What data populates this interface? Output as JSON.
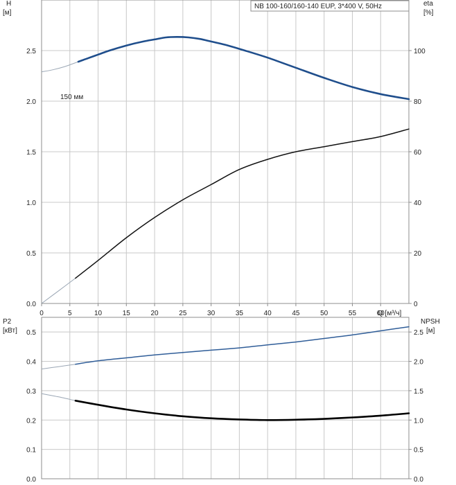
{
  "title_box": "NB 100-160/160-140 EUP, 3*400 V, 50Hz",
  "curve_label": "150 мм",
  "colors": {
    "grid": "#c8c8c8",
    "frame": "#8c8c8c",
    "head_curve": "#1f4e8c",
    "eta_curve": "#111111",
    "npsh_curve": "#2f5d98",
    "p2_curve": "#000000",
    "extension": "#9aa6b4"
  },
  "chart_data": [
    {
      "type": "line",
      "panel": "top",
      "x_axis": {
        "label": "Q [м³/ч]",
        "ticks": [
          0,
          5,
          10,
          15,
          20,
          25,
          30,
          35,
          40,
          45,
          50,
          55,
          60
        ],
        "range": [
          0,
          65
        ]
      },
      "left_axis": {
        "label": "H",
        "unit": "[м]",
        "ticks": [
          0.0,
          0.5,
          1.0,
          1.5,
          2.0,
          2.5
        ],
        "range": [
          0,
          3.0
        ]
      },
      "right_axis": {
        "label": "eta",
        "unit": "[%]",
        "ticks": [
          0,
          20,
          40,
          60,
          80,
          100
        ],
        "range": [
          0,
          120
        ]
      },
      "series": [
        {
          "name": "H",
          "axis": "left",
          "extension": {
            "x": [
              0,
              2,
              4,
              6.5
            ],
            "y": [
              2.29,
              2.31,
              2.34,
              2.39
            ]
          },
          "x": [
            6.5,
            8,
            10,
            12,
            15,
            18,
            20,
            22,
            24,
            26,
            28,
            30,
            33,
            36,
            40,
            45,
            50,
            55,
            60,
            65
          ],
          "y": [
            2.39,
            2.42,
            2.46,
            2.5,
            2.55,
            2.59,
            2.61,
            2.63,
            2.635,
            2.63,
            2.615,
            2.59,
            2.55,
            2.5,
            2.43,
            2.33,
            2.23,
            2.14,
            2.07,
            2.02
          ]
        },
        {
          "name": "eta",
          "axis": "right",
          "extension": {
            "x": [
              0,
              3,
              6
            ],
            "y": [
              0,
              5,
              10
            ]
          },
          "x": [
            6,
            10,
            15,
            20,
            25,
            30,
            35,
            40,
            45,
            50,
            55,
            60,
            65
          ],
          "y": [
            10,
            17,
            26,
            34,
            41,
            47,
            53,
            57,
            60,
            62,
            64,
            66,
            69
          ]
        }
      ]
    },
    {
      "type": "line",
      "panel": "bottom",
      "x_axis": {
        "range": [
          0,
          65
        ]
      },
      "left_axis": {
        "label": "P2",
        "unit": "[кВт]",
        "ticks": [
          0.0,
          0.1,
          0.2,
          0.3,
          0.4,
          0.5
        ],
        "range": [
          0,
          0.55
        ]
      },
      "right_axis": {
        "label": "NPSH",
        "unit": "[м]",
        "ticks": [
          0.0,
          0.5,
          1.0,
          1.5,
          2.0,
          2.5
        ],
        "range": [
          0,
          2.75
        ]
      },
      "series": [
        {
          "name": "NPSH",
          "axis": "right",
          "extension": {
            "x": [
              0,
              3,
              6
            ],
            "y": [
              1.87,
              1.91,
              1.95
            ]
          },
          "x": [
            6,
            10,
            15,
            20,
            25,
            30,
            35,
            40,
            45,
            50,
            55,
            60,
            65
          ],
          "y": [
            1.95,
            2.01,
            2.06,
            2.11,
            2.15,
            2.19,
            2.23,
            2.28,
            2.33,
            2.39,
            2.45,
            2.52,
            2.59
          ]
        },
        {
          "name": "P2",
          "axis": "left",
          "extension": {
            "x": [
              0,
              3,
              6
            ],
            "y": [
              0.29,
              0.279,
              0.266
            ]
          },
          "x": [
            6,
            10,
            15,
            20,
            25,
            30,
            35,
            40,
            45,
            50,
            55,
            60,
            65
          ],
          "y": [
            0.266,
            0.252,
            0.236,
            0.223,
            0.213,
            0.206,
            0.202,
            0.2,
            0.201,
            0.204,
            0.209,
            0.215,
            0.223
          ]
        }
      ]
    }
  ]
}
